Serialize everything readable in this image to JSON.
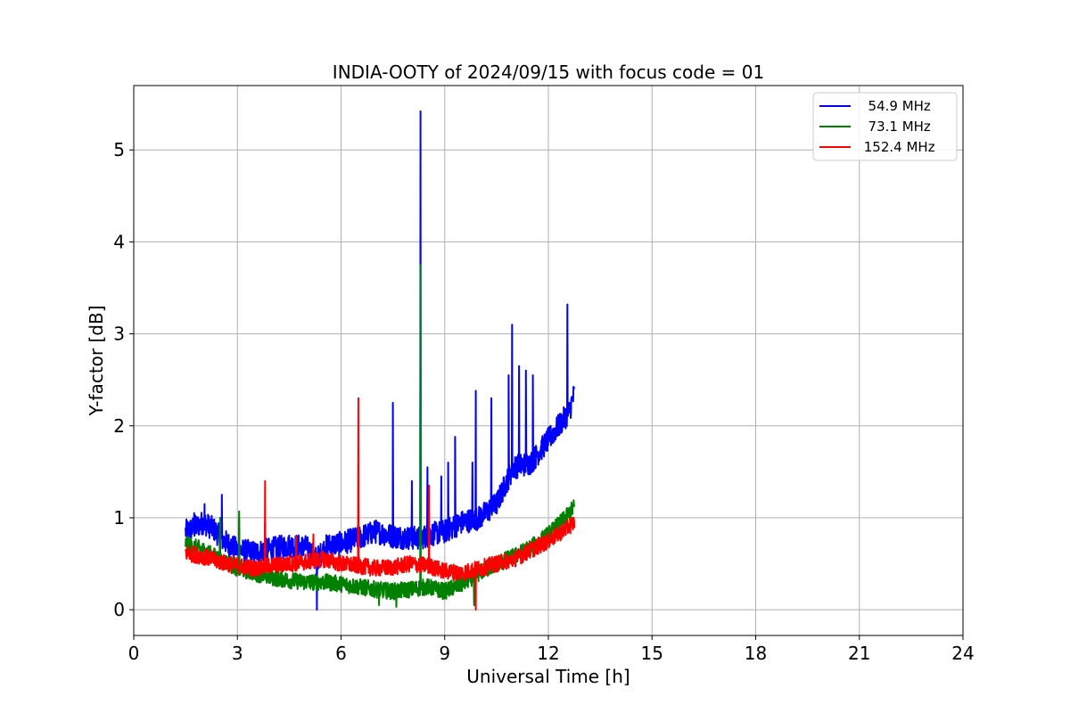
{
  "chart_data": {
    "type": "line",
    "title": "INDIA-OOTY of 2024/09/15 with focus code = 01",
    "xlabel": "Universal Time [h]",
    "ylabel": "Y-factor [dB]",
    "xlim": [
      0,
      24
    ],
    "ylim": [
      -0.28,
      5.7
    ],
    "xticks": [
      0,
      3,
      6,
      9,
      12,
      15,
      18,
      21,
      24
    ],
    "yticks": [
      0,
      1,
      2,
      3,
      4,
      5
    ],
    "grid": true,
    "legend_position": "top-right",
    "series": [
      {
        "name": "  54.9 MHz",
        "color": "#0000ff",
        "x": [
          1.5,
          1.8,
          2.0,
          2.3,
          2.6,
          3.0,
          3.5,
          4.0,
          4.5,
          5.0,
          5.3,
          5.6,
          6.0,
          6.5,
          7.0,
          7.5,
          8.0,
          8.3,
          8.6,
          9.0,
          9.5,
          10.0,
          10.5,
          10.8,
          11.0,
          11.5,
          12.0,
          12.3,
          12.6,
          12.75
        ],
        "y": [
          0.85,
          0.9,
          0.95,
          0.88,
          0.75,
          0.65,
          0.62,
          0.66,
          0.7,
          0.68,
          0.55,
          0.7,
          0.72,
          0.78,
          0.85,
          0.8,
          0.78,
          0.78,
          0.82,
          0.85,
          0.95,
          1.0,
          1.15,
          1.4,
          1.55,
          1.6,
          1.85,
          2.0,
          2.15,
          2.35
        ],
        "spikes": [
          [
            1.75,
            1.05
          ],
          [
            2.05,
            1.15
          ],
          [
            2.55,
            1.25
          ],
          [
            3.05,
            1.0
          ],
          [
            3.8,
            0.95
          ],
          [
            5.3,
            0.0
          ],
          [
            7.5,
            2.25
          ],
          [
            8.05,
            1.4
          ],
          [
            8.3,
            5.42
          ],
          [
            8.5,
            1.55
          ],
          [
            8.9,
            1.45
          ],
          [
            9.1,
            1.6
          ],
          [
            9.3,
            1.88
          ],
          [
            9.8,
            1.6
          ],
          [
            9.9,
            2.38
          ],
          [
            10.35,
            2.3
          ],
          [
            10.85,
            2.55
          ],
          [
            10.95,
            3.1
          ],
          [
            11.15,
            2.65
          ],
          [
            11.35,
            2.6
          ],
          [
            11.55,
            2.55
          ],
          [
            12.55,
            3.32
          ]
        ]
      },
      {
        "name": "  73.1 MHz",
        "color": "#008000",
        "x": [
          1.5,
          2.0,
          2.5,
          3.0,
          3.5,
          4.0,
          4.5,
          5.0,
          5.5,
          6.0,
          6.5,
          7.0,
          7.5,
          8.0,
          8.5,
          9.0,
          9.5,
          10.0,
          10.5,
          11.0,
          11.5,
          12.0,
          12.5,
          12.75
        ],
        "y": [
          0.72,
          0.65,
          0.55,
          0.45,
          0.4,
          0.35,
          0.32,
          0.3,
          0.3,
          0.28,
          0.25,
          0.22,
          0.2,
          0.22,
          0.25,
          0.2,
          0.28,
          0.4,
          0.5,
          0.58,
          0.68,
          0.82,
          1.0,
          1.12
        ],
        "spikes": [
          [
            2.5,
            1.0
          ],
          [
            3.05,
            1.07
          ],
          [
            7.1,
            0.05
          ],
          [
            7.6,
            0.03
          ],
          [
            8.3,
            3.75
          ],
          [
            9.85,
            0.05
          ]
        ]
      },
      {
        "name": " 152.4 MHz",
        "color": "#ff0000",
        "x": [
          1.5,
          2.0,
          2.5,
          3.0,
          3.5,
          4.0,
          4.5,
          5.0,
          5.5,
          6.0,
          6.5,
          7.0,
          7.5,
          8.0,
          8.5,
          9.0,
          9.5,
          10.0,
          10.5,
          11.0,
          11.5,
          12.0,
          12.5,
          12.75
        ],
        "y": [
          0.62,
          0.58,
          0.52,
          0.48,
          0.45,
          0.48,
          0.5,
          0.52,
          0.55,
          0.5,
          0.48,
          0.45,
          0.46,
          0.5,
          0.48,
          0.42,
          0.4,
          0.45,
          0.5,
          0.55,
          0.65,
          0.75,
          0.88,
          0.95
        ],
        "spikes": [
          [
            3.8,
            1.4
          ],
          [
            4.7,
            0.8
          ],
          [
            5.2,
            0.82
          ],
          [
            6.5,
            2.3
          ],
          [
            8.55,
            1.35
          ],
          [
            9.9,
            0.0
          ]
        ]
      }
    ]
  }
}
